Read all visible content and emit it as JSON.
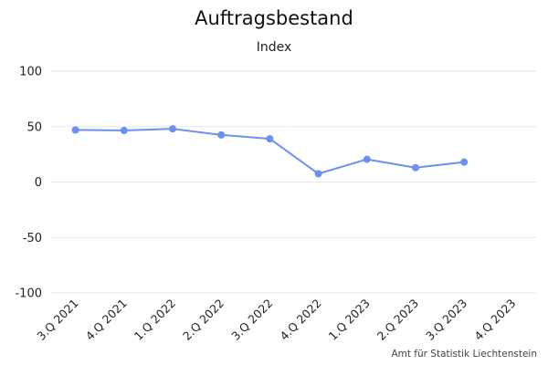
{
  "chart_data": {
    "type": "line",
    "title": "Auftragsbestand",
    "subtitle": "Index",
    "categories": [
      "3.Q 2021",
      "4.Q 2021",
      "1.Q 2022",
      "2.Q 2022",
      "3.Q 2022",
      "4.Q 2022",
      "1.Q 2023",
      "2.Q 2023",
      "3.Q 2023",
      "4.Q 2023"
    ],
    "series": [
      {
        "values": [
          47,
          46.5,
          48,
          42.5,
          39,
          7.5,
          20.5,
          13,
          18,
          null
        ]
      }
    ],
    "y_ticks": [
      100,
      50,
      0,
      -50,
      -100
    ],
    "ylim": [
      -100,
      100
    ],
    "grid": true,
    "legend": "none",
    "colors": {
      "line": "#6b8ff5",
      "grid": "#e6e6e6"
    }
  },
  "footer": {
    "source": "Amt für Statistik Liechtenstein"
  }
}
